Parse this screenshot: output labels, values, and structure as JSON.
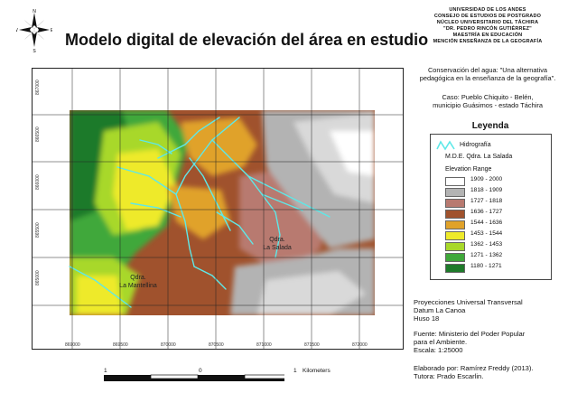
{
  "title": "Modelo digital de elevación del área en estudio",
  "institution": [
    "UNIVERSIDAD DE LOS ANDES",
    "CONSEJO DE ESTUDIOS DE POSTGRADO",
    "NÚCLEO UNIVERSITARIO DEL TÁCHIRA",
    "\"DR. PEDRO RINCÓN GUTIÉRREZ\"",
    "MAESTRÍA EN EDUCACIÓN",
    "MENCIÓN ENSEÑANZA DE LA GEOGRAFÍA"
  ],
  "compass": {
    "n": "N",
    "s": "S",
    "e": "E",
    "w": "W"
  },
  "project_lines": [
    "Conservación del agua: \"Una alternativa",
    "pedagógica en la enseñanza de la geografía\"."
  ],
  "case_lines": [
    "Caso: Pueblo Chiquito - Belén,",
    "municipio Guásimos - estado Táchira"
  ],
  "legend": {
    "title": "Leyenda",
    "hydro_label": "Hidrografía",
    "dem_label": "M.D.E. Qdra. La Salada",
    "range_title": "Elevation Range",
    "ranges": [
      {
        "label": "1909 - 2000",
        "color": "#ffffff"
      },
      {
        "label": "1818 - 1909",
        "color": "#b3b3b3"
      },
      {
        "label": "1727 - 1818",
        "color": "#b87a70"
      },
      {
        "label": "1636 - 1727",
        "color": "#a0522d"
      },
      {
        "label": "1544 - 1636",
        "color": "#e0a22a"
      },
      {
        "label": "1453 - 1544",
        "color": "#eeea2a"
      },
      {
        "label": "1362 - 1453",
        "color": "#a8d82a"
      },
      {
        "label": "1271 - 1362",
        "color": "#3fa83a"
      },
      {
        "label": "1180 - 1271",
        "color": "#1e7a2a"
      }
    ],
    "hydro_color": "#5ee8e8"
  },
  "map": {
    "y_ticks": [
      "867000",
      "866500",
      "866000",
      "865500",
      "865000"
    ],
    "x_ticks": [
      "869000",
      "869500",
      "870000",
      "870500",
      "871000",
      "871500",
      "872000"
    ],
    "place_labels": [
      {
        "name": "qdra-la-salada",
        "lines": [
          "Qdra.",
          "La Salada"
        ]
      },
      {
        "name": "qdra-la-mantellina",
        "lines": [
          "Qdra.",
          "La Mantellina"
        ]
      }
    ]
  },
  "scale": {
    "left": "1",
    "mid": "0",
    "right": "1",
    "unit": "Kilometers"
  },
  "projection_lines": [
    "Proyecciones Universal Transversal",
    "Datum La Canoa",
    "Huso 18"
  ],
  "source_lines": [
    "Fuente: Ministerio del Poder Popular",
    "para el Ambiente.",
    "Escala: 1:25000"
  ],
  "author_lines": [
    "Elaborado por: Ramírez Freddy (2013).",
    "Tutora: Prado Escarlin."
  ]
}
